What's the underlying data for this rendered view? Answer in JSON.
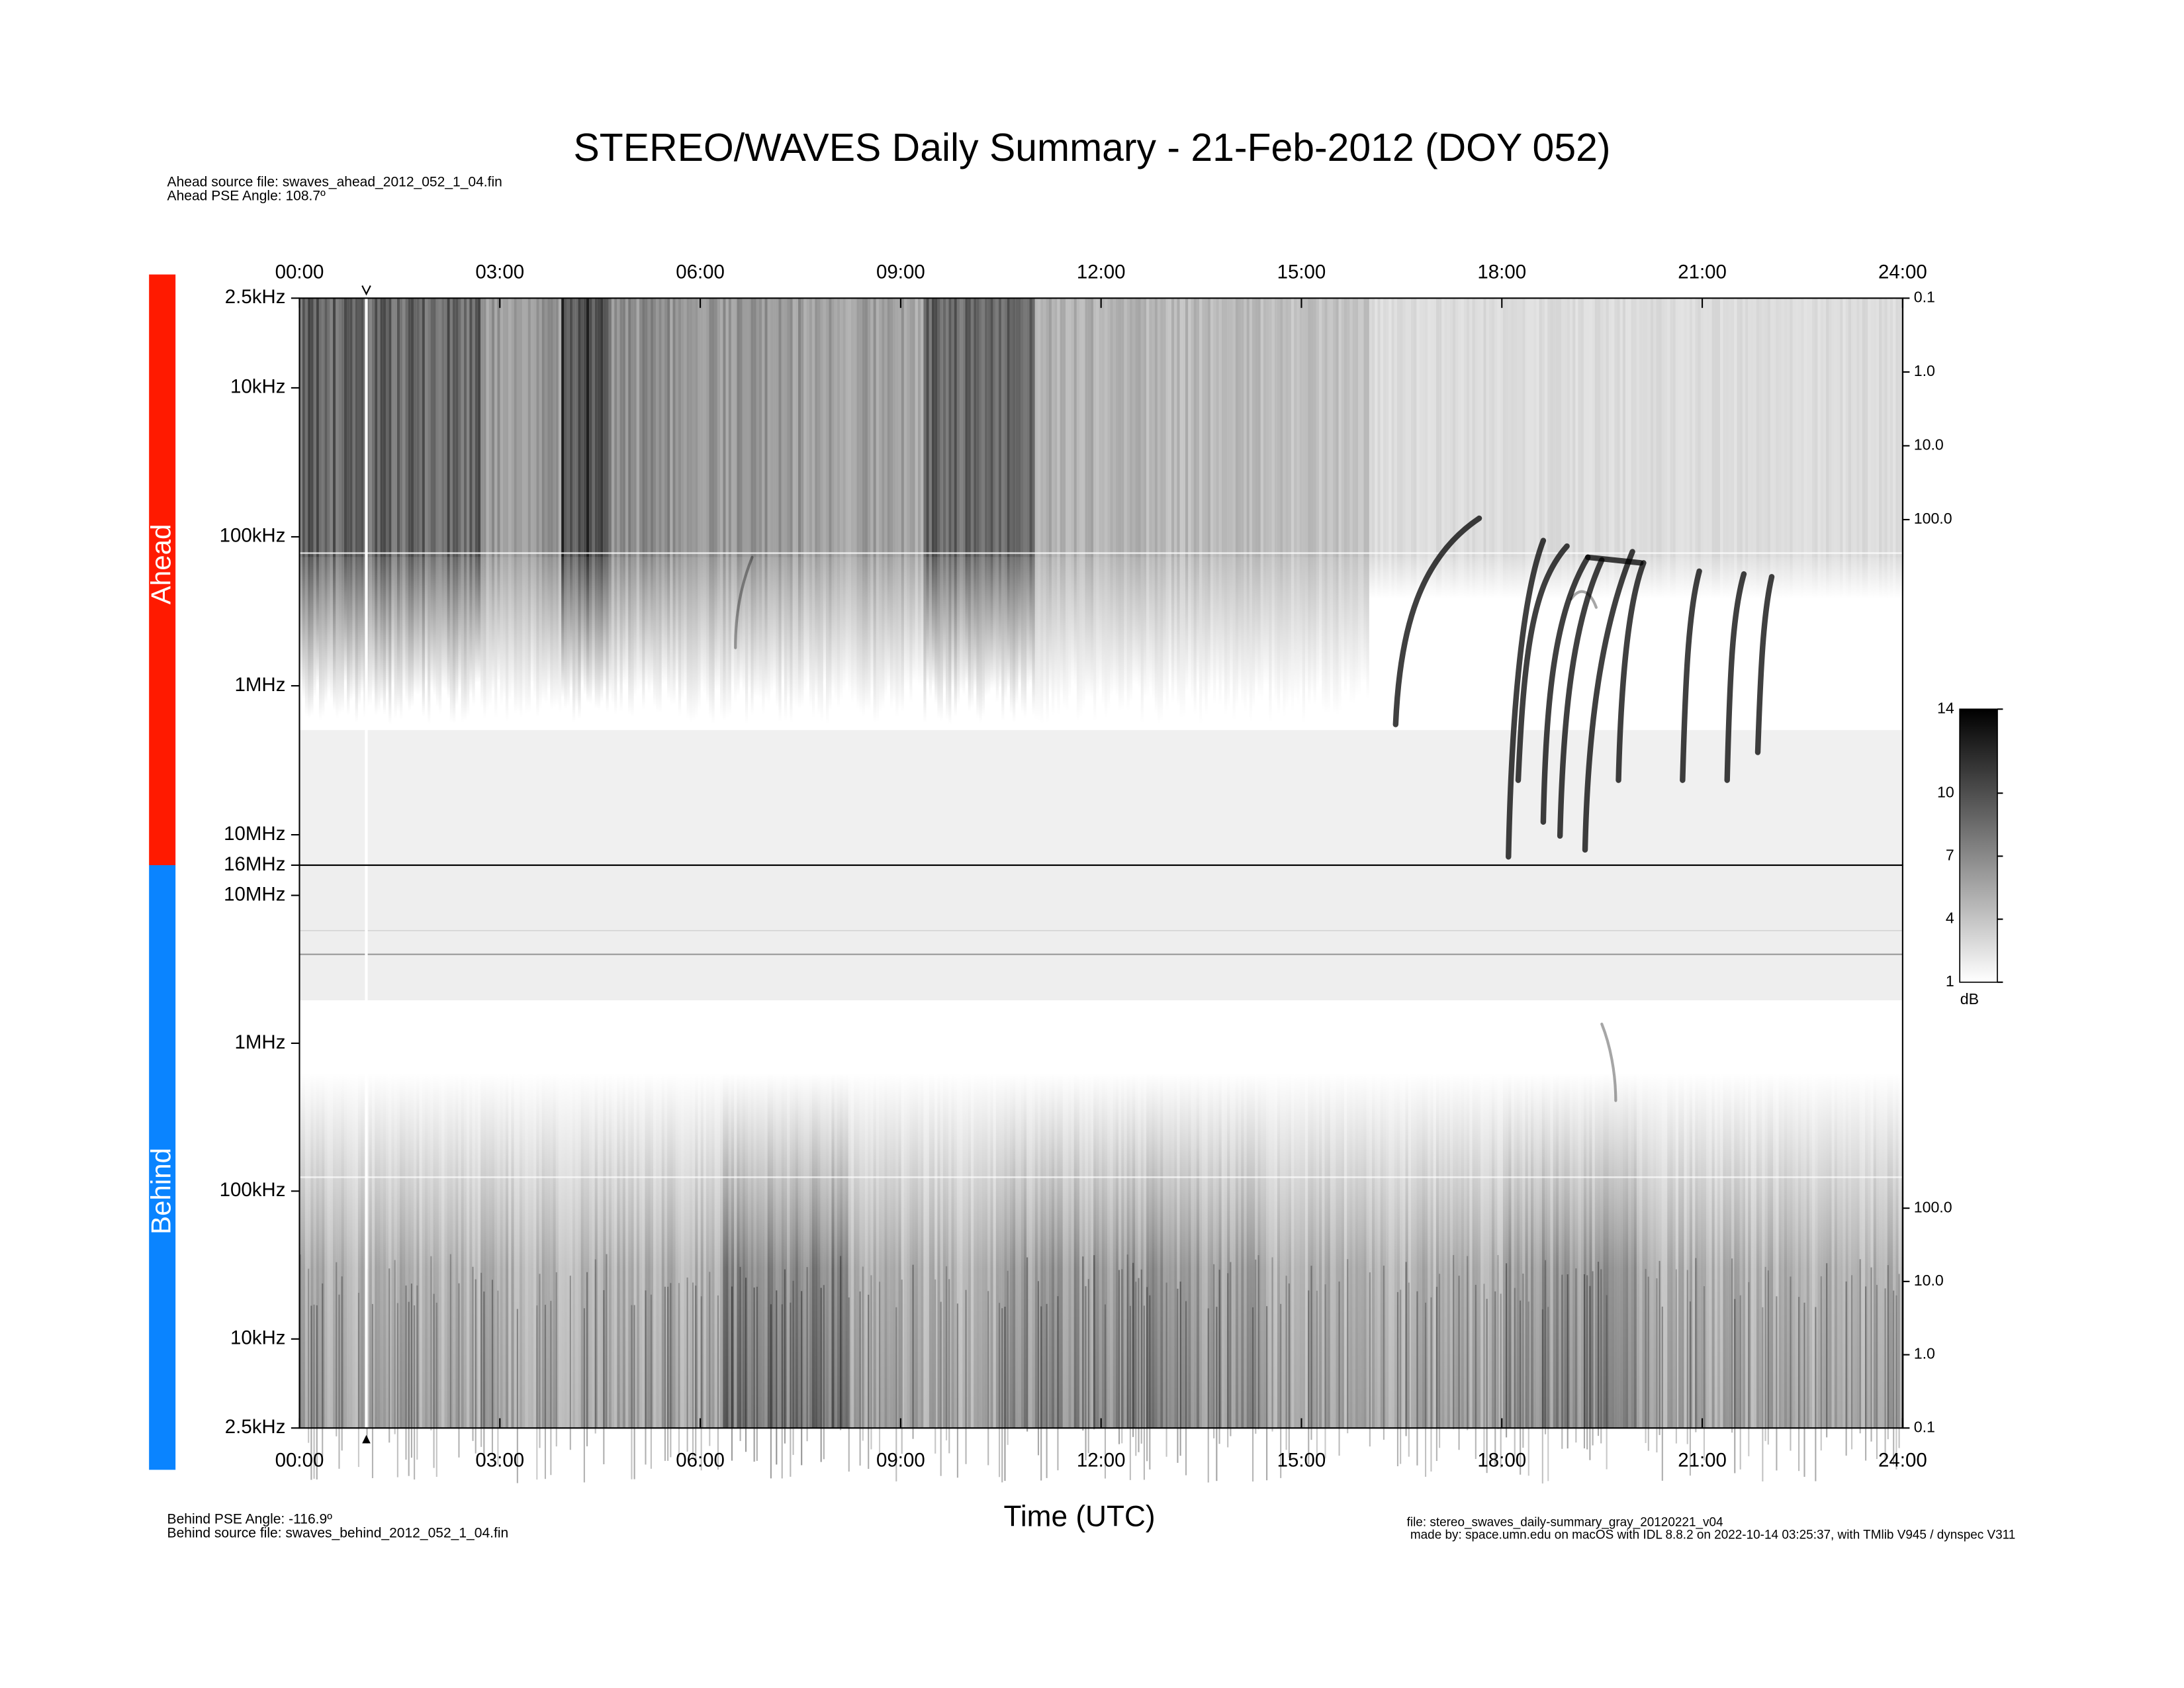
{
  "title": "STEREO/WAVES Daily Summary - 21-Feb-2012 (DOY 052)",
  "ahead_info": [
    "Ahead source file: swaves_ahead_2012_052_1_04.fin",
    "Ahead PSE Angle:  108.7º"
  ],
  "behind_info": [
    "Behind PSE Angle: -116.9º",
    "Behind source file: swaves_behind_2012_052_1_04.fin"
  ],
  "file_info": [
    "file: stereo_swaves_daily-summary_gray_20120221_v04",
    "made by: space.umn.edu on macOS with IDL 8.8.2 on 2022-10-14 03:25:37, with TMlib V945 / dynspec V311"
  ],
  "chart_data": {
    "type": "spectrogram",
    "x_label": "Time (UTC)",
    "xlim": [
      0,
      24
    ],
    "xticks": [
      {
        "value": 0,
        "label": "00:00"
      },
      {
        "value": 3,
        "label": "03:00"
      },
      {
        "value": 6,
        "label": "06:00"
      },
      {
        "value": 9,
        "label": "09:00"
      },
      {
        "value": 12,
        "label": "12:00"
      },
      {
        "value": 15,
        "label": "15:00"
      },
      {
        "value": 18,
        "label": "18:00"
      },
      {
        "value": 21,
        "label": "21:00"
      },
      {
        "value": 24,
        "label": "24:00"
      }
    ],
    "panels": [
      {
        "name": "Ahead",
        "color": "#ff1a00",
        "log_scale": true,
        "ylim": [
          16000,
          2.5
        ],
        "yticks": [
          {
            "value": 2.5,
            "label": "2.5kHz"
          },
          {
            "value": 10,
            "label": "10kHz"
          },
          {
            "value": 100,
            "label": "100kHz"
          },
          {
            "value": 1000,
            "label": "1MHz"
          },
          {
            "value": 10000,
            "label": "10MHz"
          },
          {
            "value": 16000,
            "label": "16MHz"
          }
        ],
        "y2lim": [
          4800000,
          0.1
        ],
        "y2ticks": [
          0.1,
          {
            "value": 1,
            "label": "1.0"
          },
          {
            "value": 10,
            "label": "10.0"
          },
          {
            "value": 100,
            "label": "100.0"
          }
        ]
      },
      {
        "name": "Behind",
        "color": "#0a84ff",
        "log_scale": true,
        "ylim": [
          2.5,
          16000
        ],
        "yticks": [
          {
            "value": 2.5,
            "label": "2.5kHz"
          },
          {
            "value": 10,
            "label": "10kHz"
          },
          {
            "value": 100,
            "label": "100kHz"
          },
          {
            "value": 1000,
            "label": "1MHz"
          },
          {
            "value": 10000,
            "label": "10MHz"
          }
        ],
        "y2lim": [
          0.1,
          4800000
        ],
        "y2ticks": [
          0.1,
          {
            "value": 1,
            "label": "1.0"
          },
          {
            "value": 10,
            "label": "10.0"
          },
          {
            "value": 100,
            "label": "100.0"
          }
        ]
      }
    ],
    "colorbar": {
      "label": "dB",
      "lim": [
        1,
        14
      ],
      "ticks": [
        1,
        4,
        7,
        10,
        14
      ]
    }
  }
}
